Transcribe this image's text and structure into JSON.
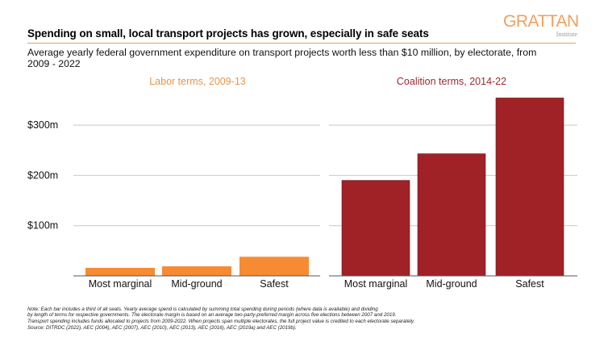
{
  "header": {
    "title": "Spending on small, local transport projects has grown, especially in safe seats",
    "subtitle": "Average yearly federal government expenditure on transport projects worth less than $10 million, by electorate, from 2009 - 2022",
    "logo_main": "GRATTAN",
    "logo_sub": "Institute"
  },
  "colors": {
    "labor": "#F68B33",
    "coalition": "#A02226",
    "labor_title": "#E8954A",
    "coalition_title": "#9C2A2E",
    "grid": "#c8c8c8",
    "logo": "#F0A060",
    "rule": "#D9A46A"
  },
  "chart_data": {
    "type": "bar",
    "title": "Spending on small, local transport projects has grown, especially in safe seats",
    "subtitle": "Average yearly federal government expenditure on transport projects worth less than $10 million, by electorate, from 2009 - 2022",
    "xlabel": "",
    "ylabel": "",
    "ylim": [
      0,
      360
    ],
    "yticks": [
      100,
      200,
      300
    ],
    "ytick_labels": [
      "$100m",
      "$200m",
      "$300m"
    ],
    "grid": true,
    "units": "$m",
    "panels": [
      {
        "name": "Labor terms, 2009-13",
        "categories": [
          "Most marginal",
          "Mid-ground",
          "Safest"
        ],
        "values": [
          16,
          19,
          38
        ],
        "color": "#F68B33"
      },
      {
        "name": "Coalition terms, 2014-22",
        "categories": [
          "Most marginal",
          "Mid-ground",
          "Safest"
        ],
        "values": [
          190,
          243,
          354
        ],
        "color": "#A02226"
      }
    ]
  },
  "footnote": {
    "lines": [
      "Note: Each bar includes a third of all seats. Yearly average spend is calculated by summing total spending during periods (where data is available) and dividing",
      "by length of terms for respective governments. The electorate margin is based on an average two-party-preferred margin across five elections between 2007 and 2019.",
      "Transport spending includes funds allocated to projects from 2009-2022. When projects span multiple electorates, the full project value is credited to each electorate separately.",
      "Source: DITRDC (2022), AEC (2004), AEC (2007), AEC (2010), AEC (2013), AEC (2016), AEC (2019a) and AEC (2019b)."
    ]
  }
}
